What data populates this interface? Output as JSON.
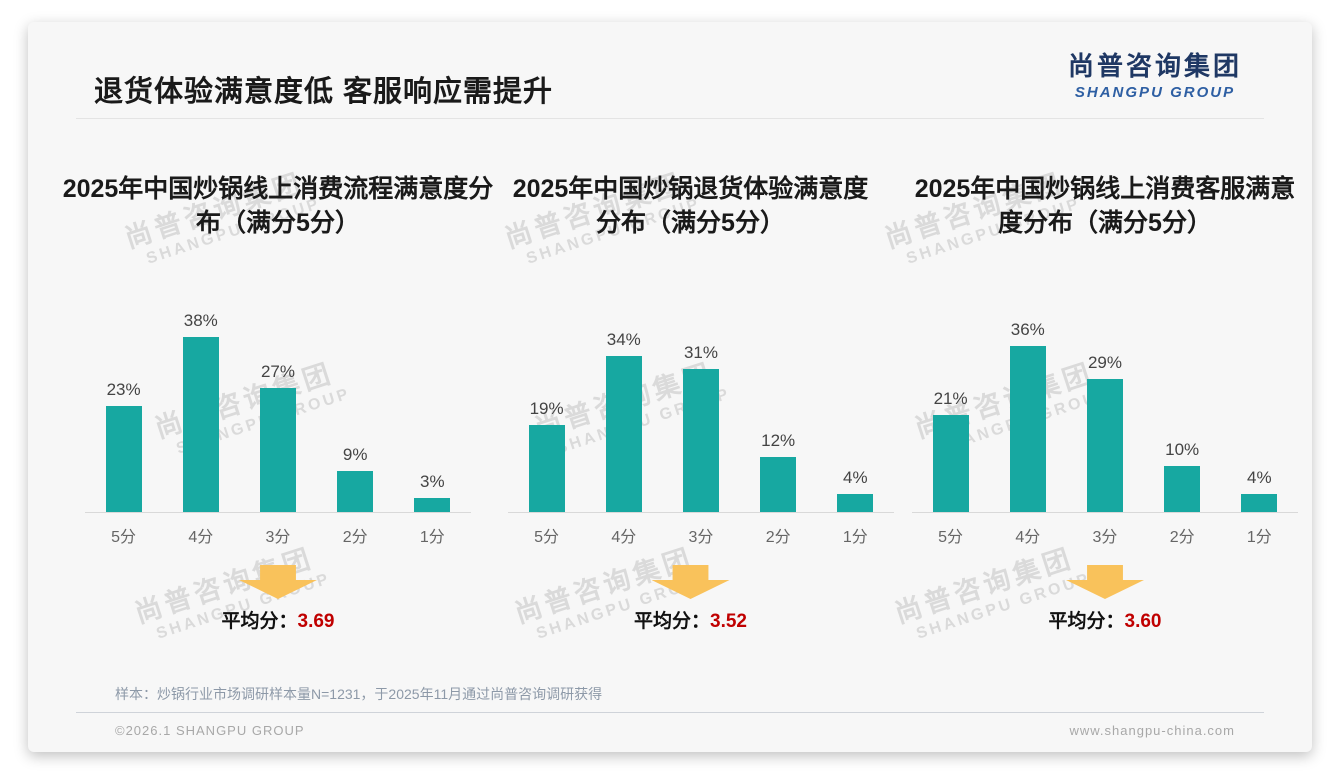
{
  "header": {
    "title": "退货体验满意度低 客服响应需提升",
    "logo": {
      "cn": "尚普咨询集团",
      "en": "SHANGPU GROUP"
    }
  },
  "watermark": {
    "line1": "尚普咨询集团",
    "line2": "SHANGPU GROUP"
  },
  "chart_data": [
    {
      "type": "bar",
      "title": "2025年中国炒锅线上消费流程满意度分布（满分5分）",
      "title_line1": "2025年中国炒锅线上消费流程满意度分",
      "title_line2": "布（满分5分）",
      "categories": [
        "5分",
        "4分",
        "3分",
        "2分",
        "1分"
      ],
      "values": [
        23,
        38,
        27,
        9,
        3
      ],
      "unit": "%",
      "ylim": [
        0,
        40
      ],
      "average_label": "平均分：",
      "average": "3.69"
    },
    {
      "type": "bar",
      "title": "2025年中国炒锅退货体验满意度分布（满分5分）",
      "title_line1": "2025年中国炒锅退货体验满意度",
      "title_line2": "分布（满分5分）",
      "categories": [
        "5分",
        "4分",
        "3分",
        "2分",
        "1分"
      ],
      "values": [
        19,
        34,
        31,
        12,
        4
      ],
      "unit": "%",
      "ylim": [
        0,
        40
      ],
      "average_label": "平均分：",
      "average": "3.52"
    },
    {
      "type": "bar",
      "title": "2025年中国炒锅线上消费客服满意度分布（满分5分）",
      "title_line1": "2025年中国炒锅线上消费客服满意",
      "title_line2": "度分布（满分5分）",
      "categories": [
        "5分",
        "4分",
        "3分",
        "2分",
        "1分"
      ],
      "values": [
        21,
        36,
        29,
        10,
        4
      ],
      "unit": "%",
      "ylim": [
        0,
        40
      ],
      "average_label": "平均分：",
      "average": "3.60"
    }
  ],
  "footer": {
    "note": "样本：炒锅行业市场调研样本量N=1231，于2025年11月通过尚普咨询调研获得",
    "copyright": "©2026.1 SHANGPU GROUP",
    "website": "www.shangpu-china.com"
  },
  "colors": {
    "bar": "#17a8a1",
    "arrow": "#f9c25b",
    "average_value": "#c00000"
  }
}
